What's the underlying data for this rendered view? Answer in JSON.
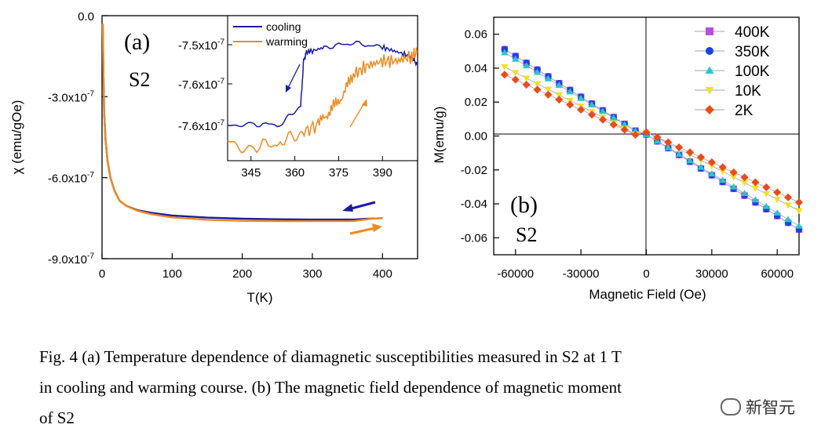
{
  "chart_data": [
    {
      "type": "line",
      "panel_label": "(a)",
      "sample_label": "S2",
      "xlabel": "T(K)",
      "ylabel": "χ (emu/gOe)",
      "xlim": [
        0,
        450
      ],
      "ylim": [
        -9e-07,
        0.0
      ],
      "xticks": [
        "0",
        "100",
        "200",
        "300",
        "400"
      ],
      "yticks": [
        "0.0",
        "-3.0x10-7",
        "-6.0x10-7",
        "-9.0x10-7"
      ],
      "series": [
        {
          "name": "cooling",
          "color": "#1a1aa6",
          "x": [
            1,
            2,
            3,
            5,
            8,
            12,
            18,
            25,
            35,
            50,
            70,
            100,
            150,
            200,
            250,
            300,
            350,
            360,
            370,
            380,
            390,
            400
          ],
          "y": [
            -3e-08,
            -2.2e-07,
            -3.6e-07,
            -4.6e-07,
            -5.4e-07,
            -6e-07,
            -6.5e-07,
            -6.85e-07,
            -7.05e-07,
            -7.2e-07,
            -7.3e-07,
            -7.4e-07,
            -7.48e-07,
            -7.52e-07,
            -7.54e-07,
            -7.55e-07,
            -7.55e-07,
            -7.55e-07,
            -7.53e-07,
            -7.52e-07,
            -7.51e-07,
            -7.5e-07
          ]
        },
        {
          "name": "warming",
          "color": "#f08a1c",
          "x": [
            1,
            2,
            3,
            5,
            8,
            12,
            18,
            25,
            35,
            50,
            70,
            100,
            150,
            200,
            250,
            300,
            350,
            360,
            370,
            380,
            390,
            400
          ],
          "y": [
            -3e-08,
            -2.2e-07,
            -3.6e-07,
            -4.6e-07,
            -5.4e-07,
            -6e-07,
            -6.5e-07,
            -6.85e-07,
            -7.05e-07,
            -7.22e-07,
            -7.35e-07,
            -7.47e-07,
            -7.56e-07,
            -7.6e-07,
            -7.61e-07,
            -7.61e-07,
            -7.61e-07,
            -7.6e-07,
            -7.57e-07,
            -7.53e-07,
            -7.51e-07,
            -7.5e-07
          ]
        }
      ],
      "arrows": [
        "cooling",
        "warming"
      ],
      "inset": {
        "xlim": [
          337,
          402
        ],
        "ylim": [
          -7.64e-07,
          -7.48e-07
        ],
        "xticks": [
          "345",
          "360",
          "375",
          "390"
        ],
        "yticks": [
          "-7.5x10-7",
          "-7.6x10-7",
          "-7.6x10-7"
        ],
        "legend": [
          {
            "label": "cooling",
            "color": "#1a1aa6"
          },
          {
            "label": "warming",
            "color": "#f08a1c"
          }
        ],
        "series": [
          {
            "name": "cooling",
            "color": "#1a1aa6",
            "x": [
              337,
              345,
              355,
              362,
              363,
              364,
              365,
              370,
              380,
              390,
              395,
              400,
              402
            ],
            "y": [
              -7.6e-07,
              -7.6e-07,
              -7.6e-07,
              -7.58e-07,
              -7.53e-07,
              -7.52e-07,
              -7.52e-07,
              -7.515e-07,
              -7.51e-07,
              -7.515e-07,
              -7.52e-07,
              -7.525e-07,
              -7.535e-07
            ]
          },
          {
            "name": "warming",
            "color": "#f08a1c",
            "x": [
              337,
              345,
              355,
              362,
              368,
              372,
              376,
              380,
              385,
              390,
              395,
              400,
              402
            ],
            "y": [
              -7.62e-07,
              -7.625e-07,
              -7.62e-07,
              -7.61e-07,
              -7.6e-07,
              -7.585e-07,
              -7.57e-07,
              -7.545e-07,
              -7.535e-07,
              -7.53e-07,
              -7.53e-07,
              -7.525e-07,
              -7.52e-07
            ]
          }
        ]
      }
    },
    {
      "type": "scatter",
      "panel_label": "(b)",
      "sample_label": "S2",
      "xlabel": "Magnetic Field (Oe)",
      "ylabel": "M(emu/g)",
      "xlim": [
        -70000,
        70000
      ],
      "ylim": [
        -0.07,
        0.07
      ],
      "xticks": [
        "-60000",
        "-30000",
        "0",
        "30000",
        "60000"
      ],
      "yticks": [
        "0.06",
        "0.04",
        "0.02",
        "0.00",
        "-0.02",
        "-0.04",
        "-0.06"
      ],
      "legend_position": "top-right",
      "series": [
        {
          "name": "400K",
          "color": "#b64de8",
          "marker": "square",
          "slope": -8e-07,
          "curv": 0.0
        },
        {
          "name": "350K",
          "color": "#1c3fe6",
          "marker": "circle",
          "slope": -8e-07,
          "curv": 0.0
        },
        {
          "name": "100K",
          "color": "#21c9c9",
          "marker": "triangle-up",
          "slope": -7.7e-07,
          "curv": 0.0
        },
        {
          "name": "10K",
          "color": "#f2e21a",
          "marker": "triangle-down",
          "slope": -6.6e-07,
          "curv": 0.0
        },
        {
          "name": "2K",
          "color": "#f04a14",
          "marker": "diamond",
          "slope": -5.9e-07,
          "curv": 0.0
        }
      ]
    }
  ],
  "caption": {
    "line1": "Fig. 4 (a) Temperature dependence of diamagnetic susceptibilities measured in S2 at 1 T",
    "line2": "in cooling and warming course. (b) The magnetic field dependence of magnetic moment",
    "line3": "of S2"
  },
  "watermark": "新智元"
}
